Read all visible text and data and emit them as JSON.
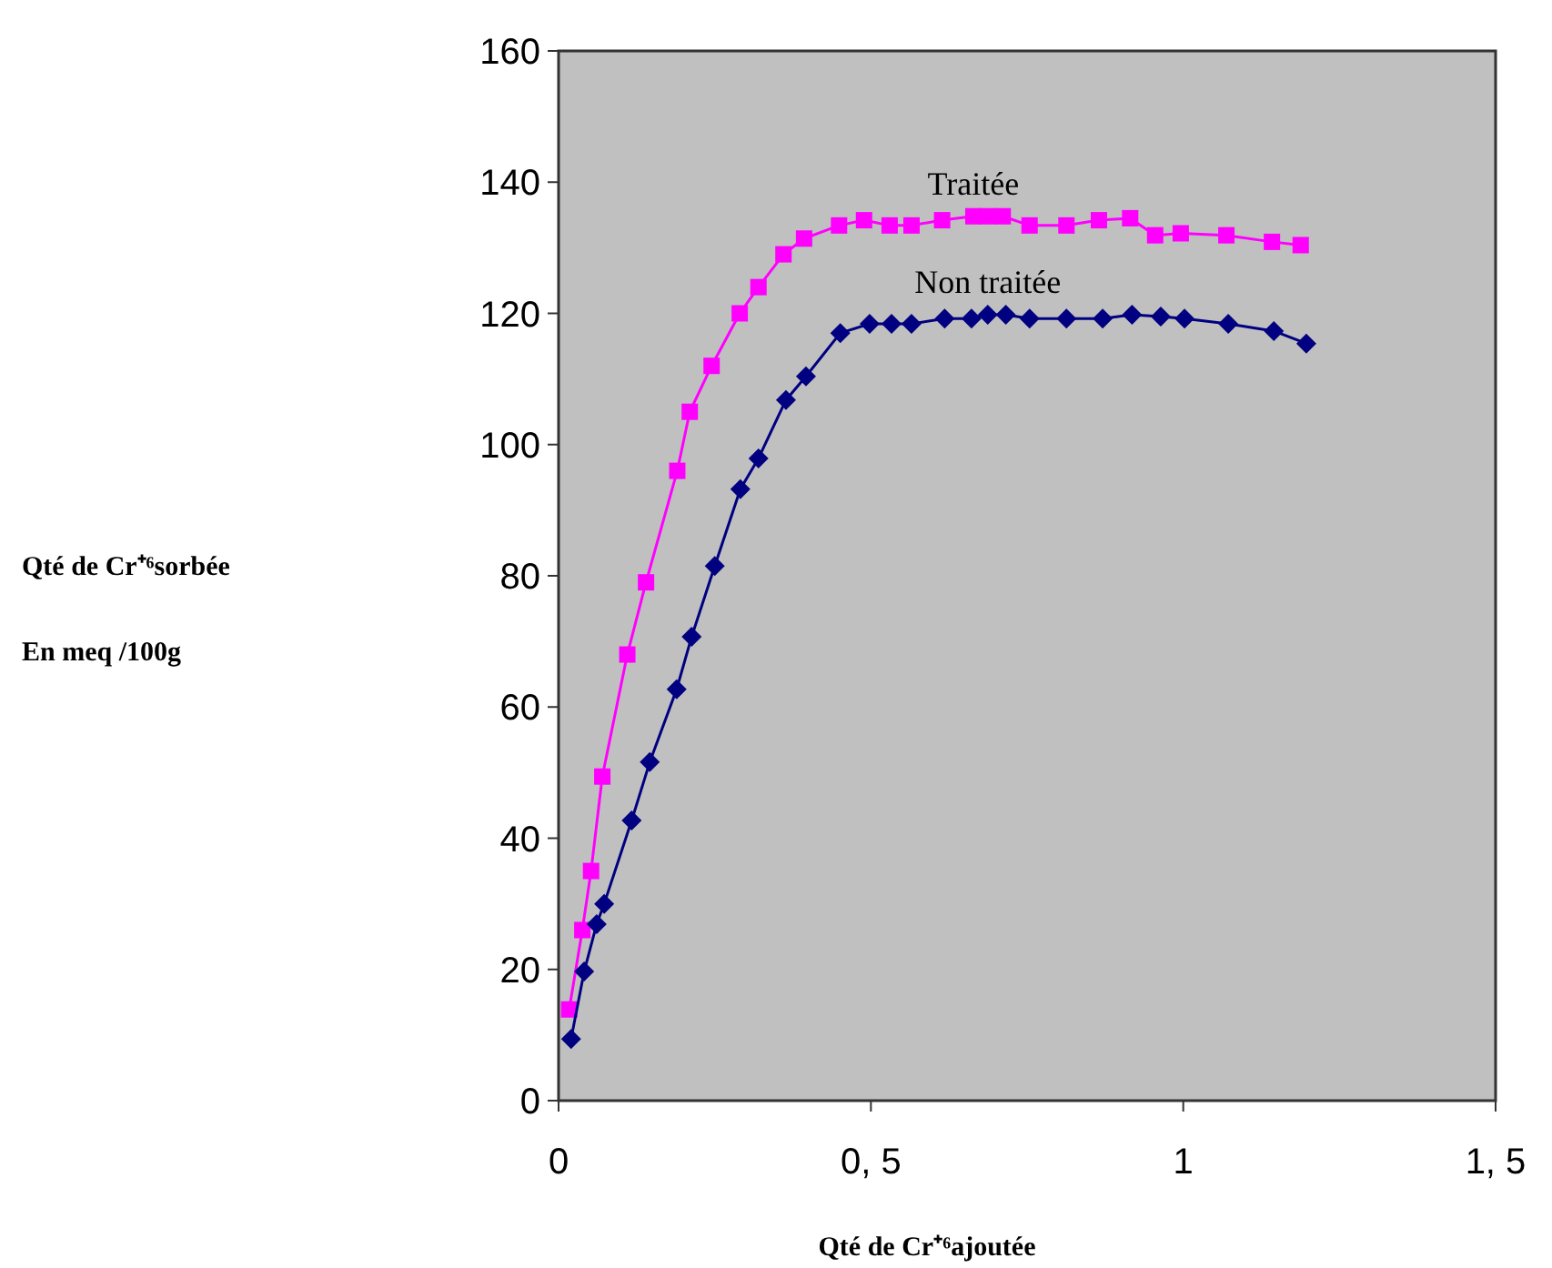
{
  "chart_data": {
    "type": "line",
    "xlabel": "Qté de Cr⁺⁶ajoutée",
    "ylabel": "Qté de Cr⁺⁶sorbée\nEn meq /100g",
    "xlim": [
      0,
      1.5
    ],
    "xticks": [
      0,
      {
        "value": 0.5,
        "label": "0, 5"
      },
      1,
      {
        "value": 1.5,
        "label": "1, 5"
      }
    ],
    "ylim": [
      0,
      160
    ],
    "yticks": [
      0,
      20,
      40,
      60,
      80,
      100,
      120,
      140,
      160
    ],
    "grid": false,
    "series": [
      {
        "name": "Traitée",
        "color": "#ff00ff",
        "marker": "square",
        "x": [
          0.017,
          0.038,
          0.052,
          0.07,
          0.11,
          0.14,
          0.19,
          0.21,
          0.245,
          0.29,
          0.32,
          0.36,
          0.393,
          0.449,
          0.489,
          0.53,
          0.565,
          0.614,
          0.664,
          0.687,
          0.711,
          0.754,
          0.813,
          0.865,
          0.915,
          0.955,
          0.996,
          1.069,
          1.142,
          1.188
        ],
        "values": [
          13.9,
          26,
          35,
          49.4,
          68,
          79,
          96,
          105,
          112,
          120,
          124,
          129,
          131.4,
          133.4,
          134.2,
          133.4,
          133.4,
          134.2,
          134.8,
          134.8,
          134.8,
          133.4,
          133.4,
          134.2,
          134.5,
          131.9,
          132.2,
          131.9,
          130.9,
          130.4
        ]
      },
      {
        "name": "Non traitée",
        "color": "#000080",
        "marker": "diamond",
        "x": [
          0.02,
          0.041,
          0.061,
          0.073,
          0.117,
          0.146,
          0.189,
          0.213,
          0.25,
          0.291,
          0.32,
          0.364,
          0.396,
          0.451,
          0.498,
          0.533,
          0.565,
          0.618,
          0.661,
          0.687,
          0.716,
          0.754,
          0.813,
          0.871,
          0.918,
          0.964,
          1.002,
          1.072,
          1.145,
          1.197
        ],
        "values": [
          9.4,
          19.7,
          26.9,
          30,
          42.7,
          51.6,
          62.7,
          70.7,
          81.5,
          93.2,
          97.9,
          106.8,
          110.4,
          117,
          118.4,
          118.4,
          118.4,
          119.2,
          119.2,
          119.8,
          119.8,
          119.2,
          119.2,
          119.2,
          119.8,
          119.5,
          119.2,
          118.4,
          117.3,
          115.4
        ]
      }
    ]
  }
}
